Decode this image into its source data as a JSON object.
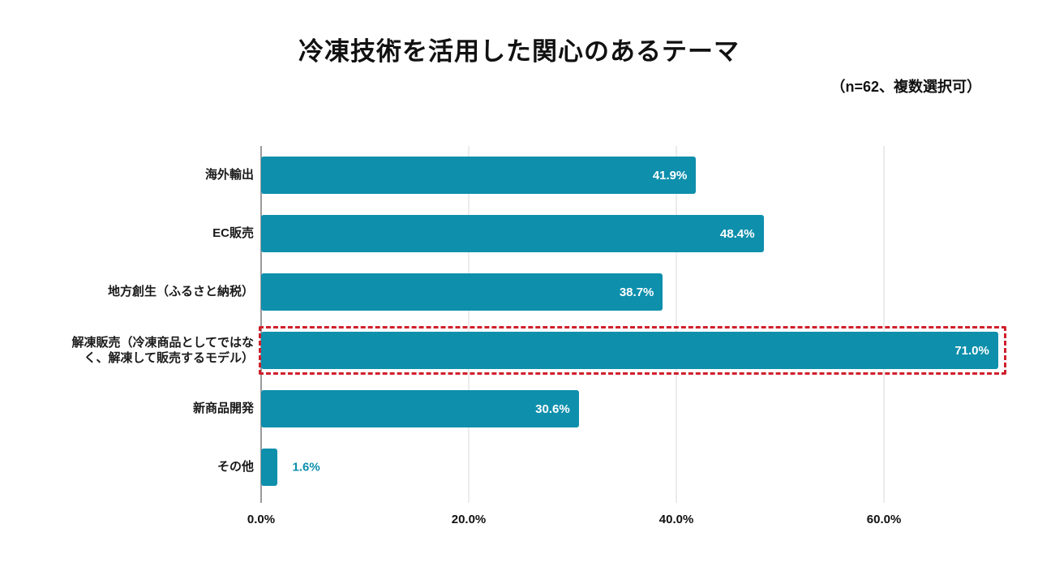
{
  "title": "冷凍技術を活用した関心のあるテーマ",
  "note": "（n=62、複数選択可）",
  "colors": {
    "bar": "#0E8FAC",
    "highlight_border": "#D0202C",
    "grid": "#D9D9D9",
    "axis": "#9B9B9B",
    "value_label_inside": "#FFFFFF",
    "value_label_outside": "#0E8FAC"
  },
  "chart_data": {
    "type": "bar",
    "orientation": "horizontal",
    "title": "冷凍技術を活用した関心のあるテーマ",
    "subtitle": "（n=62、複数選択可）",
    "sample_size": 62,
    "categories": [
      "海外輸出",
      "EC販売",
      "地方創生（ふるさと納税）",
      "解凍販売（冷凍商品としてではな\nく、解凍して販売するモデル）",
      "新商品開発",
      "その他"
    ],
    "values": [
      41.9,
      48.4,
      38.7,
      71.0,
      30.6,
      1.6
    ],
    "value_labels": [
      "41.9%",
      "48.4%",
      "38.7%",
      "71.0%",
      "30.6%",
      "1.6%"
    ],
    "highlighted_index": 3,
    "x_ticks": [
      "0.0%",
      "20.0%",
      "40.0%",
      "60.0%"
    ],
    "x_tick_values": [
      0,
      20,
      40,
      60
    ],
    "xlim": [
      0,
      71.4
    ],
    "grid": true,
    "legend": false,
    "value_label_inside_threshold": 10
  }
}
